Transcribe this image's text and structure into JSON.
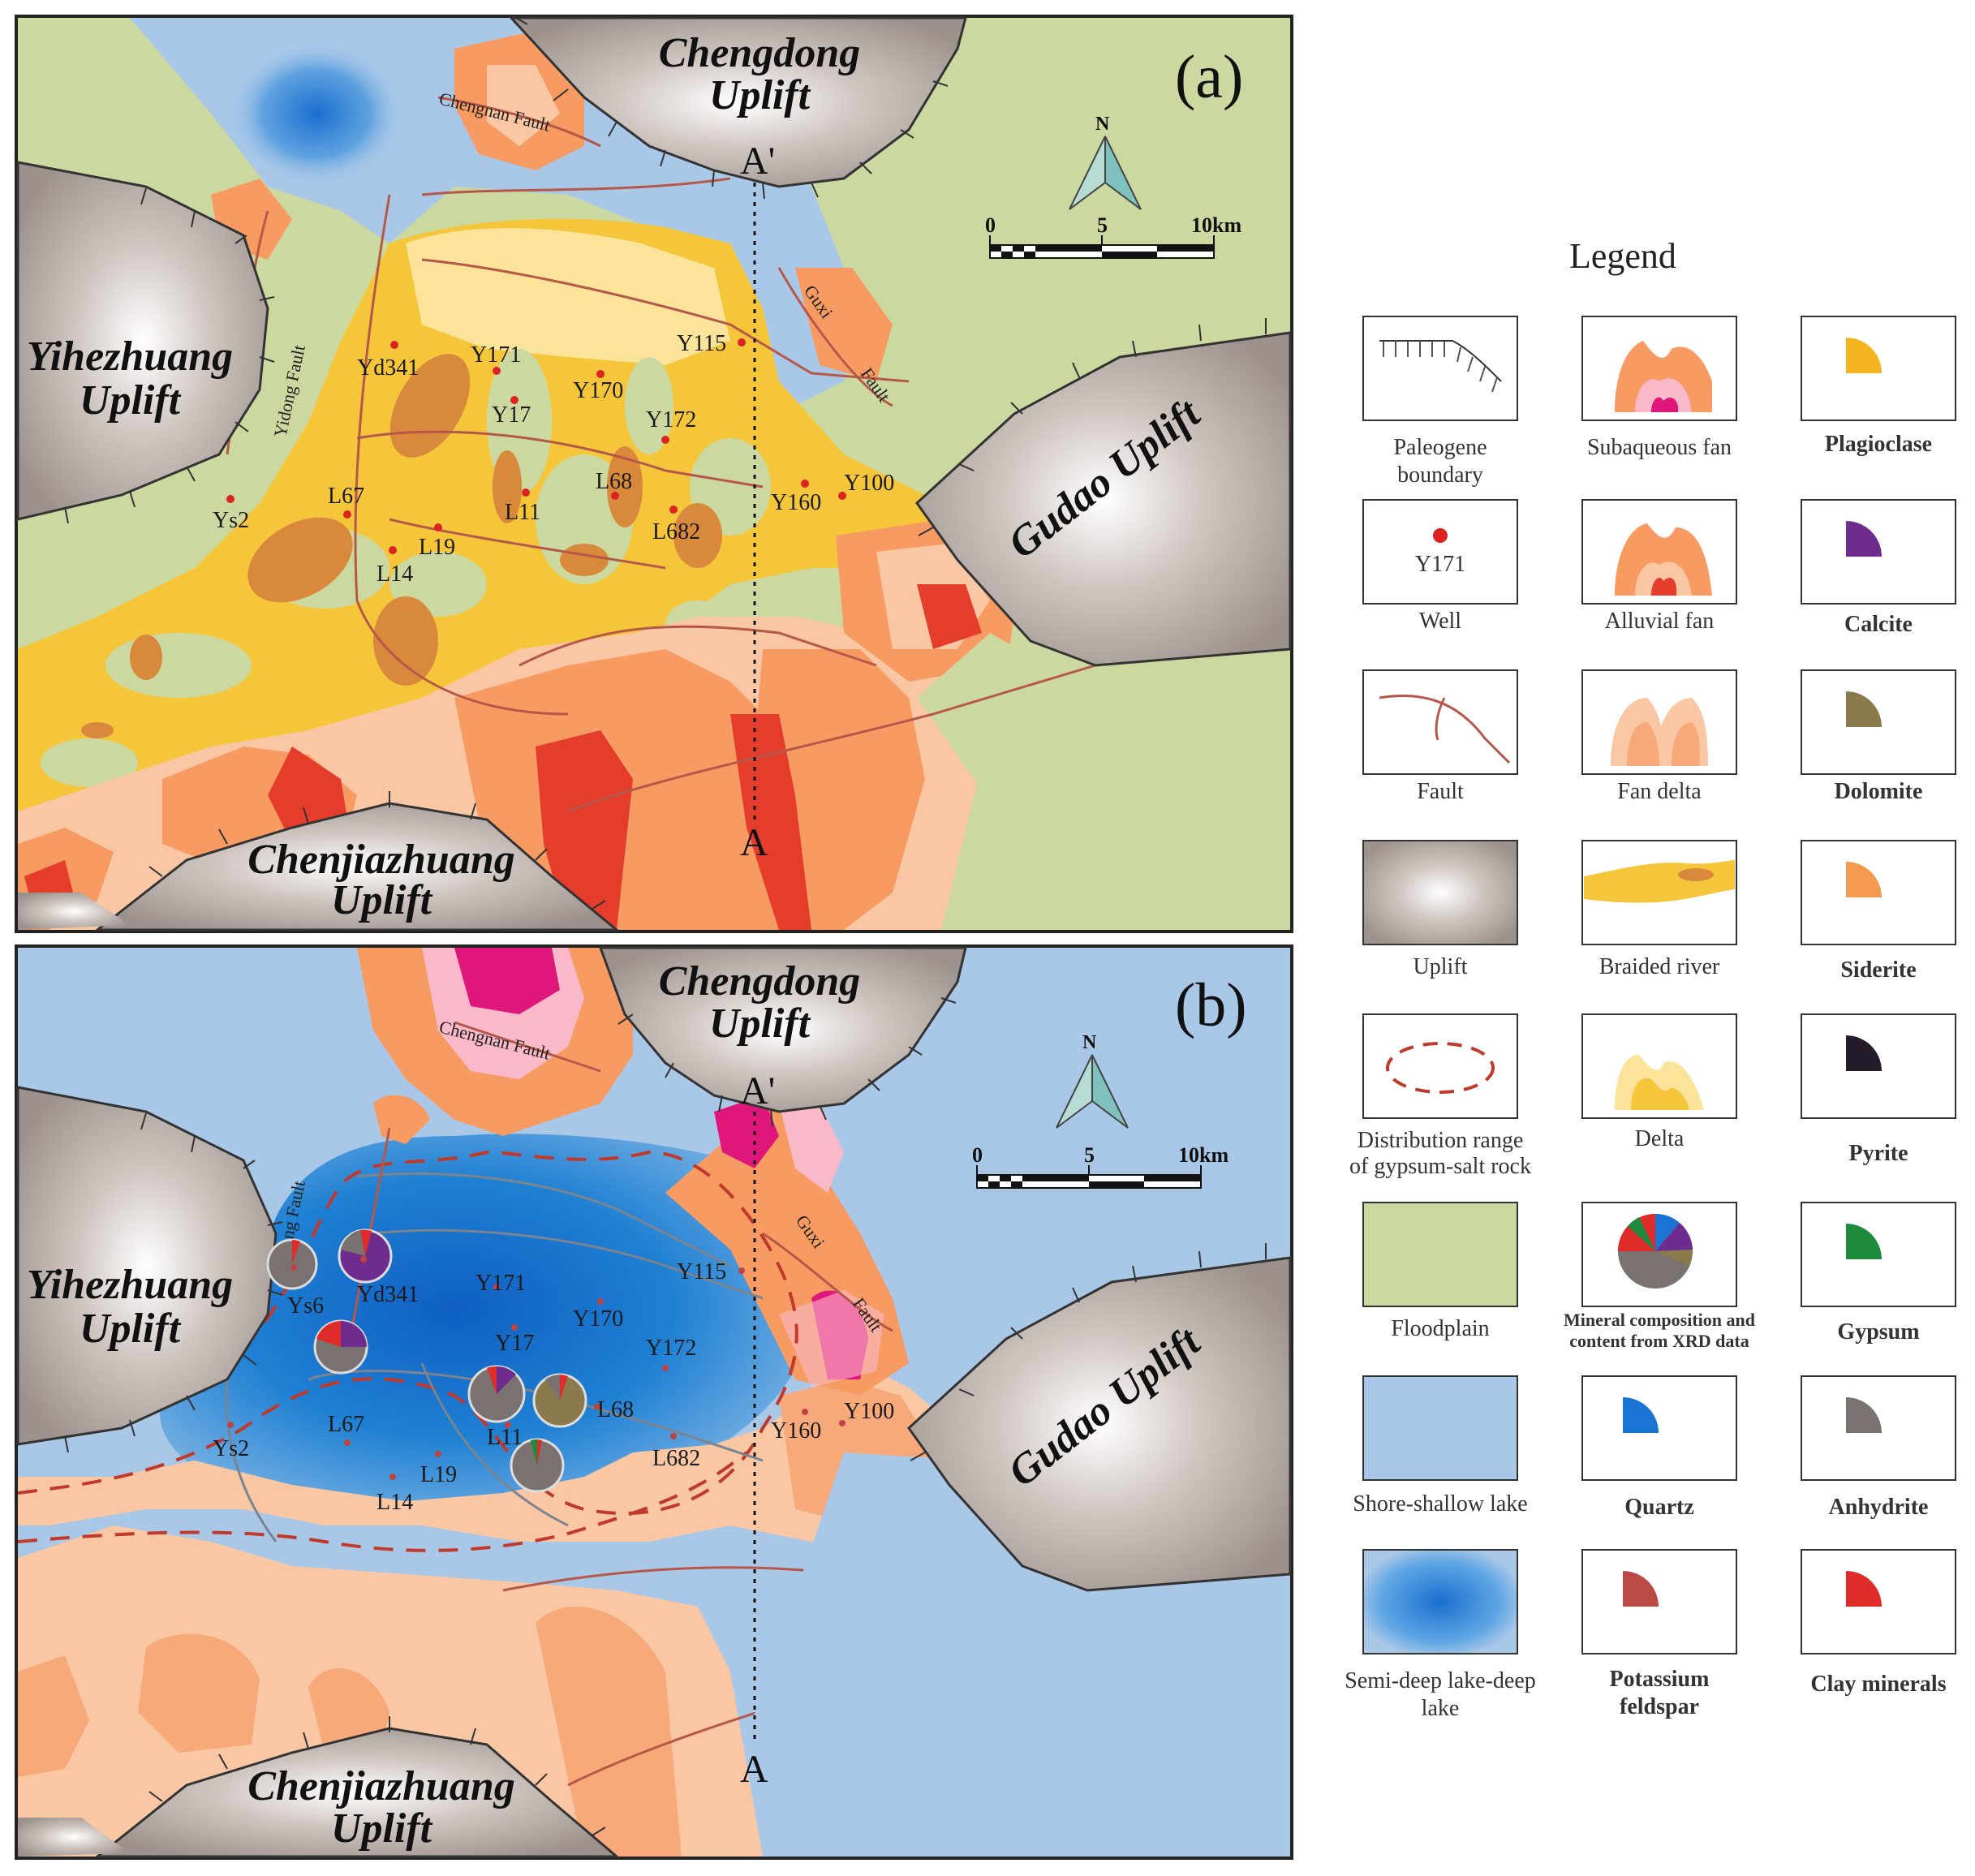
{
  "panels": {
    "a": {
      "label": "(a)",
      "uplifts": {
        "chengdong": [
          "Chengdong",
          "Uplift"
        ],
        "yihezhuang": [
          "Yihezhuang",
          "Uplift"
        ],
        "gudao": "Gudao Uplift",
        "chenjiazhuang": [
          "Chenjiazhuang",
          "Uplift"
        ]
      },
      "faults": {
        "chengnan": "Chengnan Fault",
        "yidong": "Yidong Fault",
        "guxi": "Guxi",
        "guxi_fault": "Fault"
      },
      "wells": [
        "Yd341",
        "Y171",
        "Y115",
        "Y170",
        "Y17",
        "Y172",
        "L68",
        "L67",
        "Ys2",
        "L11",
        "L19",
        "L14",
        "L682",
        "Y160",
        "Y100"
      ],
      "section_top": "A'",
      "section_bottom": "A"
    },
    "b": {
      "label": "(b)",
      "uplifts": {
        "chengdong": [
          "Chengdong",
          "Uplift"
        ],
        "yihezhuang": [
          "Yihezhuang",
          "Uplift"
        ],
        "gudao": "Gudao Uplift",
        "chenjiazhuang": [
          "Chenjiazhuang",
          "Uplift"
        ]
      },
      "faults": {
        "chengnan": "Chengnan Fault",
        "yidong": "Yidong Fault",
        "guxi": "Guxi",
        "guxi_fault": "Fault"
      },
      "wells": [
        "Ys6",
        "Yd341",
        "Y171",
        "Y115",
        "Y170",
        "Y17",
        "Y172",
        "L68",
        "L67",
        "Ys2",
        "L11",
        "L19",
        "L14",
        "L682",
        "Y160",
        "Y100"
      ],
      "section_top": "A'",
      "section_bottom": "A"
    }
  },
  "north_arrow": "N",
  "scale_bar": {
    "labels": [
      "0",
      "5",
      "10km"
    ]
  },
  "legend": {
    "title": "Legend",
    "items": [
      {
        "key": "paleogene",
        "label": [
          "Paleogene",
          "boundary"
        ]
      },
      {
        "key": "subaqueous",
        "label": [
          "Subaqueous fan"
        ]
      },
      {
        "key": "plagioclase",
        "label": [
          "Plagioclase"
        ],
        "color": "#f5b521"
      },
      {
        "key": "well",
        "label": [
          "Well"
        ],
        "sample": "Y171"
      },
      {
        "key": "alluvial",
        "label": [
          "Alluvial fan"
        ]
      },
      {
        "key": "calcite",
        "label": [
          "Calcite"
        ],
        "color": "#6e2d8e"
      },
      {
        "key": "fault",
        "label": [
          "Fault"
        ]
      },
      {
        "key": "fandelta",
        "label": [
          "Fan delta"
        ]
      },
      {
        "key": "dolomite",
        "label": [
          "Dolomite"
        ],
        "color": "#8a7a4c"
      },
      {
        "key": "uplift",
        "label": [
          "Uplift"
        ]
      },
      {
        "key": "braided",
        "label": [
          "Braided river"
        ]
      },
      {
        "key": "siderite",
        "label": [
          "Siderite"
        ],
        "color": "#f39a4e"
      },
      {
        "key": "gypsumrange",
        "label": [
          "Distribution range",
          "of gypsum-salt rock"
        ]
      },
      {
        "key": "delta",
        "label": [
          "Delta"
        ]
      },
      {
        "key": "pyrite",
        "label": [
          "Pyrite"
        ],
        "color": "#231a2a"
      },
      {
        "key": "floodplain",
        "label": [
          "Floodplain"
        ]
      },
      {
        "key": "mineral",
        "label": [
          "Mineral composition and",
          "content from XRD data"
        ]
      },
      {
        "key": "gypsum",
        "label": [
          "Gypsum"
        ],
        "color": "#1e8a3c"
      },
      {
        "key": "shoreshallow",
        "label": [
          "Shore-shallow lake"
        ]
      },
      {
        "key": "quartz",
        "label": [
          "Quartz"
        ],
        "color": "#1a74d4"
      },
      {
        "key": "anhydrite",
        "label": [
          "Anhydrite"
        ],
        "color": "#7a7270"
      },
      {
        "key": "semideep",
        "label": [
          "Semi-deep lake-deep",
          "lake"
        ]
      },
      {
        "key": "kfeldspar",
        "label": [
          "Potassium",
          "feldspar"
        ],
        "color": "#b94a44"
      },
      {
        "key": "clay",
        "label": [
          "Clay minerals"
        ],
        "color": "#e02b2b"
      }
    ]
  },
  "colors": {
    "floodplain": "#cbd9a0",
    "shore_lake": "#a9c8e8",
    "deep_lake": "#1f7fd0",
    "uplift": "#b3a9a5",
    "fan_outer": "#f9c7a4",
    "fan_mid": "#f79b63",
    "fan_core": "#e53d2c",
    "braided": "#f5c53a",
    "braided_dark": "#d9893c",
    "delta": "#fbe49a",
    "subaqueous_core": "#e0177a",
    "fault": "#b5584a"
  }
}
